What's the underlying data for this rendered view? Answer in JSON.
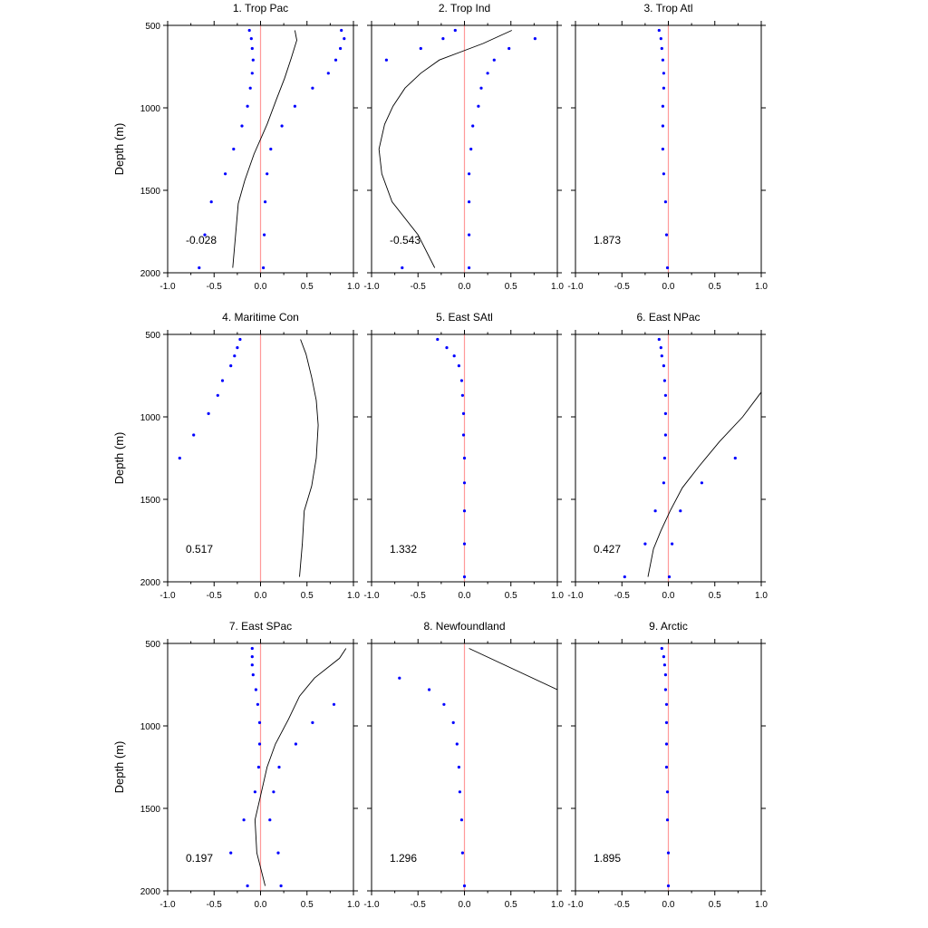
{
  "figure": {
    "ylabel": "Depth (m)",
    "xlim": [
      -1.0,
      1.0
    ],
    "ylim": [
      500,
      2000
    ],
    "y_inverted": true,
    "xticks": [
      "-1.0",
      "-0.5",
      "0.0",
      "0.5",
      "1.0"
    ],
    "yticks": [
      "500",
      "1000",
      "1500",
      "2000"
    ],
    "colors": {
      "line": "#000000",
      "points": "#0000ff",
      "zero_line": "#ff9a9a",
      "frame": "#000000"
    }
  },
  "chart_data": [
    {
      "type": "scatter",
      "title": "1. Trop Pac",
      "correlation": "-0.028",
      "points": [
        [
          -0.12,
          530
        ],
        [
          -0.1,
          580
        ],
        [
          -0.09,
          640
        ],
        [
          -0.08,
          710
        ],
        [
          -0.09,
          790
        ],
        [
          -0.11,
          880
        ],
        [
          -0.14,
          990
        ],
        [
          -0.2,
          1110
        ],
        [
          -0.29,
          1250
        ],
        [
          -0.38,
          1400
        ],
        [
          -0.53,
          1570
        ],
        [
          -0.6,
          1770
        ],
        [
          -0.66,
          1970
        ],
        [
          0.87,
          530
        ],
        [
          0.9,
          580
        ],
        [
          0.86,
          640
        ],
        [
          0.81,
          710
        ],
        [
          0.73,
          790
        ],
        [
          0.56,
          880
        ],
        [
          0.37,
          990
        ],
        [
          0.23,
          1110
        ],
        [
          0.11,
          1250
        ],
        [
          0.07,
          1400
        ],
        [
          0.05,
          1570
        ],
        [
          0.04,
          1770
        ],
        [
          0.03,
          1970
        ]
      ],
      "line": [
        [
          0.37,
          530
        ],
        [
          0.39,
          590
        ],
        [
          0.33,
          700
        ],
        [
          0.26,
          820
        ],
        [
          0.17,
          950
        ],
        [
          0.07,
          1100
        ],
        [
          -0.07,
          1280
        ],
        [
          -0.17,
          1440
        ],
        [
          -0.24,
          1580
        ],
        [
          -0.27,
          1780
        ],
        [
          -0.3,
          1970
        ]
      ]
    },
    {
      "type": "scatter",
      "title": "2. Trop Ind",
      "correlation": "-0.543",
      "points": [
        [
          -0.1,
          530
        ],
        [
          -0.23,
          580
        ],
        [
          -0.47,
          640
        ],
        [
          -0.84,
          710
        ],
        [
          -0.67,
          1970
        ],
        [
          0.76,
          580
        ],
        [
          0.48,
          640
        ],
        [
          0.32,
          710
        ],
        [
          0.25,
          790
        ],
        [
          0.18,
          880
        ],
        [
          0.15,
          990
        ],
        [
          0.09,
          1110
        ],
        [
          0.07,
          1250
        ],
        [
          0.05,
          1400
        ],
        [
          0.05,
          1570
        ],
        [
          0.05,
          1770
        ],
        [
          0.05,
          1970
        ]
      ],
      "line": [
        [
          0.51,
          530
        ],
        [
          0.2,
          610
        ],
        [
          -0.27,
          710
        ],
        [
          -0.47,
          790
        ],
        [
          -0.64,
          880
        ],
        [
          -0.77,
          990
        ],
        [
          -0.86,
          1100
        ],
        [
          -0.92,
          1250
        ],
        [
          -0.89,
          1400
        ],
        [
          -0.78,
          1570
        ],
        [
          -0.5,
          1770
        ],
        [
          -0.32,
          1970
        ]
      ]
    },
    {
      "type": "scatter",
      "title": "3. Trop Atl",
      "correlation": "1.873",
      "points": [
        [
          -0.1,
          530
        ],
        [
          -0.08,
          580
        ],
        [
          -0.07,
          640
        ],
        [
          -0.06,
          710
        ],
        [
          -0.05,
          790
        ],
        [
          -0.05,
          880
        ],
        [
          -0.06,
          990
        ],
        [
          -0.06,
          1110
        ],
        [
          -0.06,
          1250
        ],
        [
          -0.05,
          1400
        ],
        [
          -0.03,
          1570
        ],
        [
          -0.02,
          1770
        ],
        [
          -0.01,
          1970
        ]
      ],
      "line": []
    },
    {
      "type": "scatter",
      "title": "4. Maritime Con",
      "correlation": "0.517",
      "points": [
        [
          -0.22,
          530
        ],
        [
          -0.25,
          580
        ],
        [
          -0.28,
          630
        ],
        [
          -0.32,
          690
        ],
        [
          -0.41,
          780
        ],
        [
          -0.46,
          870
        ],
        [
          -0.56,
          980
        ],
        [
          -0.72,
          1110
        ],
        [
          -0.87,
          1250
        ]
      ],
      "line": [
        [
          0.43,
          530
        ],
        [
          0.49,
          620
        ],
        [
          0.55,
          760
        ],
        [
          0.6,
          900
        ],
        [
          0.62,
          1050
        ],
        [
          0.6,
          1250
        ],
        [
          0.55,
          1420
        ],
        [
          0.47,
          1570
        ],
        [
          0.45,
          1770
        ],
        [
          0.42,
          1970
        ]
      ]
    },
    {
      "type": "scatter",
      "title": "5. East SAtl",
      "correlation": "1.332",
      "points": [
        [
          -0.29,
          530
        ],
        [
          -0.19,
          580
        ],
        [
          -0.11,
          630
        ],
        [
          -0.06,
          690
        ],
        [
          -0.03,
          780
        ],
        [
          -0.02,
          870
        ],
        [
          -0.01,
          980
        ],
        [
          -0.01,
          1110
        ],
        [
          0.0,
          1250
        ],
        [
          0.0,
          1400
        ],
        [
          0.0,
          1570
        ],
        [
          0.0,
          1770
        ],
        [
          0.0,
          1970
        ]
      ],
      "line": []
    },
    {
      "type": "scatter",
      "title": "6. East NPac",
      "correlation": "0.427",
      "points": [
        [
          -0.1,
          530
        ],
        [
          -0.08,
          580
        ],
        [
          -0.07,
          630
        ],
        [
          -0.05,
          690
        ],
        [
          -0.04,
          780
        ],
        [
          -0.03,
          870
        ],
        [
          -0.03,
          980
        ],
        [
          -0.03,
          1110
        ],
        [
          -0.04,
          1250
        ],
        [
          -0.05,
          1400
        ],
        [
          -0.14,
          1570
        ],
        [
          -0.25,
          1770
        ],
        [
          -0.47,
          1970
        ],
        [
          0.72,
          1250
        ],
        [
          0.36,
          1400
        ],
        [
          0.13,
          1570
        ],
        [
          0.04,
          1770
        ],
        [
          0.01,
          1970
        ]
      ],
      "line": [
        [
          1.0,
          850
        ],
        [
          0.8,
          1000
        ],
        [
          0.55,
          1150
        ],
        [
          0.33,
          1300
        ],
        [
          0.15,
          1430
        ],
        [
          0.02,
          1570
        ],
        [
          -0.08,
          1690
        ],
        [
          -0.16,
          1800
        ],
        [
          -0.22,
          1970
        ]
      ]
    },
    {
      "type": "scatter",
      "title": "7. East SPac",
      "correlation": "0.197",
      "points": [
        [
          -0.09,
          530
        ],
        [
          -0.09,
          580
        ],
        [
          -0.09,
          630
        ],
        [
          -0.08,
          690
        ],
        [
          -0.05,
          780
        ],
        [
          -0.03,
          870
        ],
        [
          -0.01,
          980
        ],
        [
          -0.01,
          1110
        ],
        [
          -0.02,
          1250
        ],
        [
          -0.06,
          1400
        ],
        [
          -0.18,
          1570
        ],
        [
          -0.32,
          1770
        ],
        [
          -0.14,
          1970
        ],
        [
          0.79,
          870
        ],
        [
          0.56,
          980
        ],
        [
          0.38,
          1110
        ],
        [
          0.2,
          1250
        ],
        [
          0.14,
          1400
        ],
        [
          0.1,
          1570
        ],
        [
          0.19,
          1770
        ],
        [
          0.22,
          1970
        ]
      ],
      "line": [
        [
          0.92,
          530
        ],
        [
          0.85,
          590
        ],
        [
          0.58,
          710
        ],
        [
          0.42,
          820
        ],
        [
          0.3,
          960
        ],
        [
          0.16,
          1110
        ],
        [
          0.07,
          1250
        ],
        [
          0.01,
          1400
        ],
        [
          -0.06,
          1570
        ],
        [
          -0.04,
          1770
        ],
        [
          0.05,
          1970
        ]
      ]
    },
    {
      "type": "scatter",
      "title": "8. Newfoundland",
      "correlation": "1.296",
      "points": [
        [
          -0.7,
          710
        ],
        [
          -0.38,
          780
        ],
        [
          -0.22,
          870
        ],
        [
          -0.12,
          980
        ],
        [
          -0.08,
          1110
        ],
        [
          -0.06,
          1250
        ],
        [
          -0.05,
          1400
        ],
        [
          -0.03,
          1570
        ],
        [
          -0.02,
          1770
        ],
        [
          0.0,
          1970
        ]
      ],
      "line": [
        [
          0.05,
          530
        ],
        [
          1.0,
          780
        ]
      ]
    },
    {
      "type": "scatter",
      "title": "9. Arctic",
      "correlation": "1.895",
      "points": [
        [
          -0.07,
          530
        ],
        [
          -0.05,
          580
        ],
        [
          -0.04,
          630
        ],
        [
          -0.03,
          690
        ],
        [
          -0.03,
          780
        ],
        [
          -0.02,
          870
        ],
        [
          -0.02,
          980
        ],
        [
          -0.02,
          1110
        ],
        [
          -0.02,
          1250
        ],
        [
          -0.01,
          1400
        ],
        [
          -0.01,
          1570
        ],
        [
          0.0,
          1770
        ],
        [
          0.0,
          1970
        ]
      ],
      "line": []
    }
  ]
}
